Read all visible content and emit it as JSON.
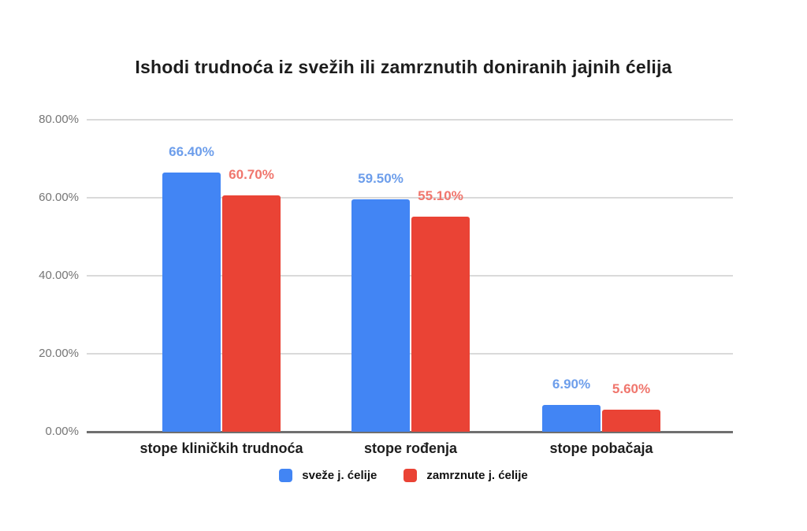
{
  "page": {
    "background": "#ffffff"
  },
  "chart_data": {
    "type": "bar",
    "title": "Ishodi trudnoća iz svežih ili zamrznutih doniranih jajnih ćelija",
    "categories": [
      "stope kliničkih trudnoća",
      "stope rođenja",
      "stope pobačaja"
    ],
    "series": [
      {
        "name": "sveže j. ćelije",
        "color": "#4285F4",
        "label_color": "#6D9EEB",
        "values": [
          66.4,
          59.5,
          6.9
        ],
        "value_labels": [
          "66.40%",
          "59.50%",
          "6.90%"
        ]
      },
      {
        "name": "zamrznute j. ćelije",
        "color": "#EA4335",
        "label_color": "#F0766D",
        "values": [
          60.7,
          55.1,
          5.6
        ],
        "value_labels": [
          "60.70%",
          "55.10%",
          "5.60%"
        ]
      }
    ],
    "xlabel": "",
    "ylabel": "",
    "ylim": [
      0,
      80
    ],
    "y_ticks": [
      {
        "value": 0,
        "label": "0.00%"
      },
      {
        "value": 20,
        "label": "20.00%"
      },
      {
        "value": 40,
        "label": "40.00%"
      },
      {
        "value": 60,
        "label": "60.00%"
      },
      {
        "value": 80,
        "label": "80.00%"
      }
    ],
    "grid": true,
    "legend_position": "bottom"
  },
  "colors": {
    "gridline": "#dadada",
    "baseline": "#6f6f6f",
    "tick_text": "#757575",
    "title_text": "#1d1d1d"
  }
}
